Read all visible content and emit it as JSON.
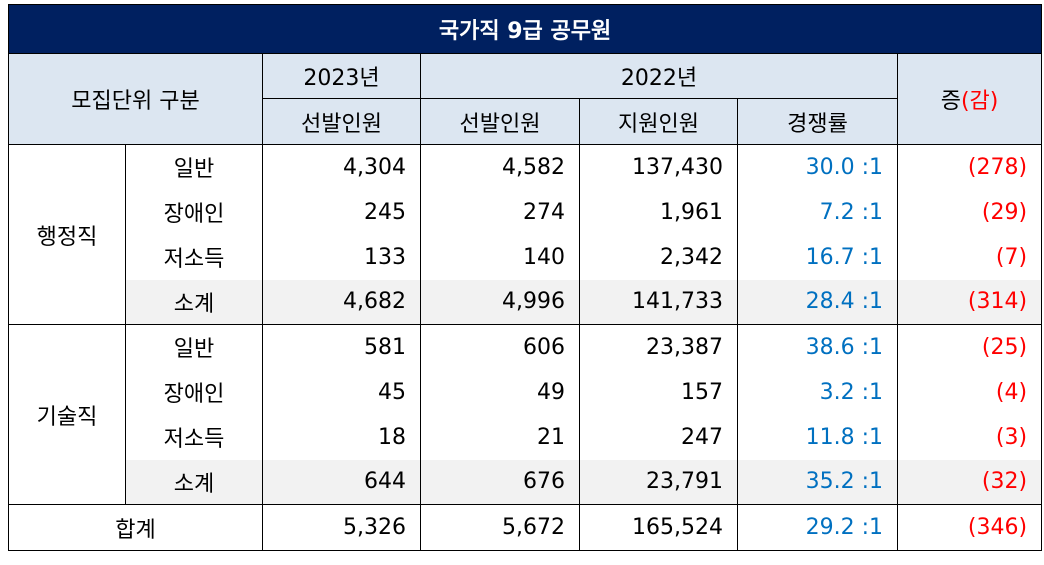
{
  "title": "국가직 9급 공무원",
  "header": {
    "unit": "모집단위 구분",
    "year2023": "2023년",
    "year2022": "2022년",
    "change_prefix": "증",
    "change_paren": "(감)",
    "selected_2023": "선발인원",
    "selected_2022": "선발인원",
    "applicants": "지원인원",
    "ratio": "경쟁률"
  },
  "groups": [
    {
      "name": "행정직",
      "rows": [
        {
          "label": "일반",
          "sel2023": "4,304",
          "sel2022": "4,582",
          "apply": "137,430",
          "ratio": "30.0 :1",
          "change": "(278)"
        },
        {
          "label": "장애인",
          "sel2023": "245",
          "sel2022": "274",
          "apply": "1,961",
          "ratio": "7.2 :1",
          "change": "(29)"
        },
        {
          "label": "저소득",
          "sel2023": "133",
          "sel2022": "140",
          "apply": "2,342",
          "ratio": "16.7 :1",
          "change": "(7)"
        },
        {
          "label": "소계",
          "sel2023": "4,682",
          "sel2022": "4,996",
          "apply": "141,733",
          "ratio": "28.4 :1",
          "change": "(314)"
        }
      ]
    },
    {
      "name": "기술직",
      "rows": [
        {
          "label": "일반",
          "sel2023": "581",
          "sel2022": "606",
          "apply": "23,387",
          "ratio": "38.6 :1",
          "change": "(25)"
        },
        {
          "label": "장애인",
          "sel2023": "45",
          "sel2022": "49",
          "apply": "157",
          "ratio": "3.2 :1",
          "change": "(4)"
        },
        {
          "label": "저소득",
          "sel2023": "18",
          "sel2022": "21",
          "apply": "247",
          "ratio": "11.8 :1",
          "change": "(3)"
        },
        {
          "label": "소계",
          "sel2023": "644",
          "sel2022": "676",
          "apply": "23,791",
          "ratio": "35.2 :1",
          "change": "(32)"
        }
      ]
    }
  ],
  "total": {
    "label": "합계",
    "sel2023": "5,326",
    "sel2022": "5,672",
    "apply": "165,524",
    "ratio": "29.2 :1",
    "change": "(346)"
  },
  "colors": {
    "title_bg": "#002060",
    "header_bg": "#dce6f1",
    "subtotal_bg": "#f2f2f2",
    "ratio": "#0070c0",
    "change": "#ff0000"
  }
}
